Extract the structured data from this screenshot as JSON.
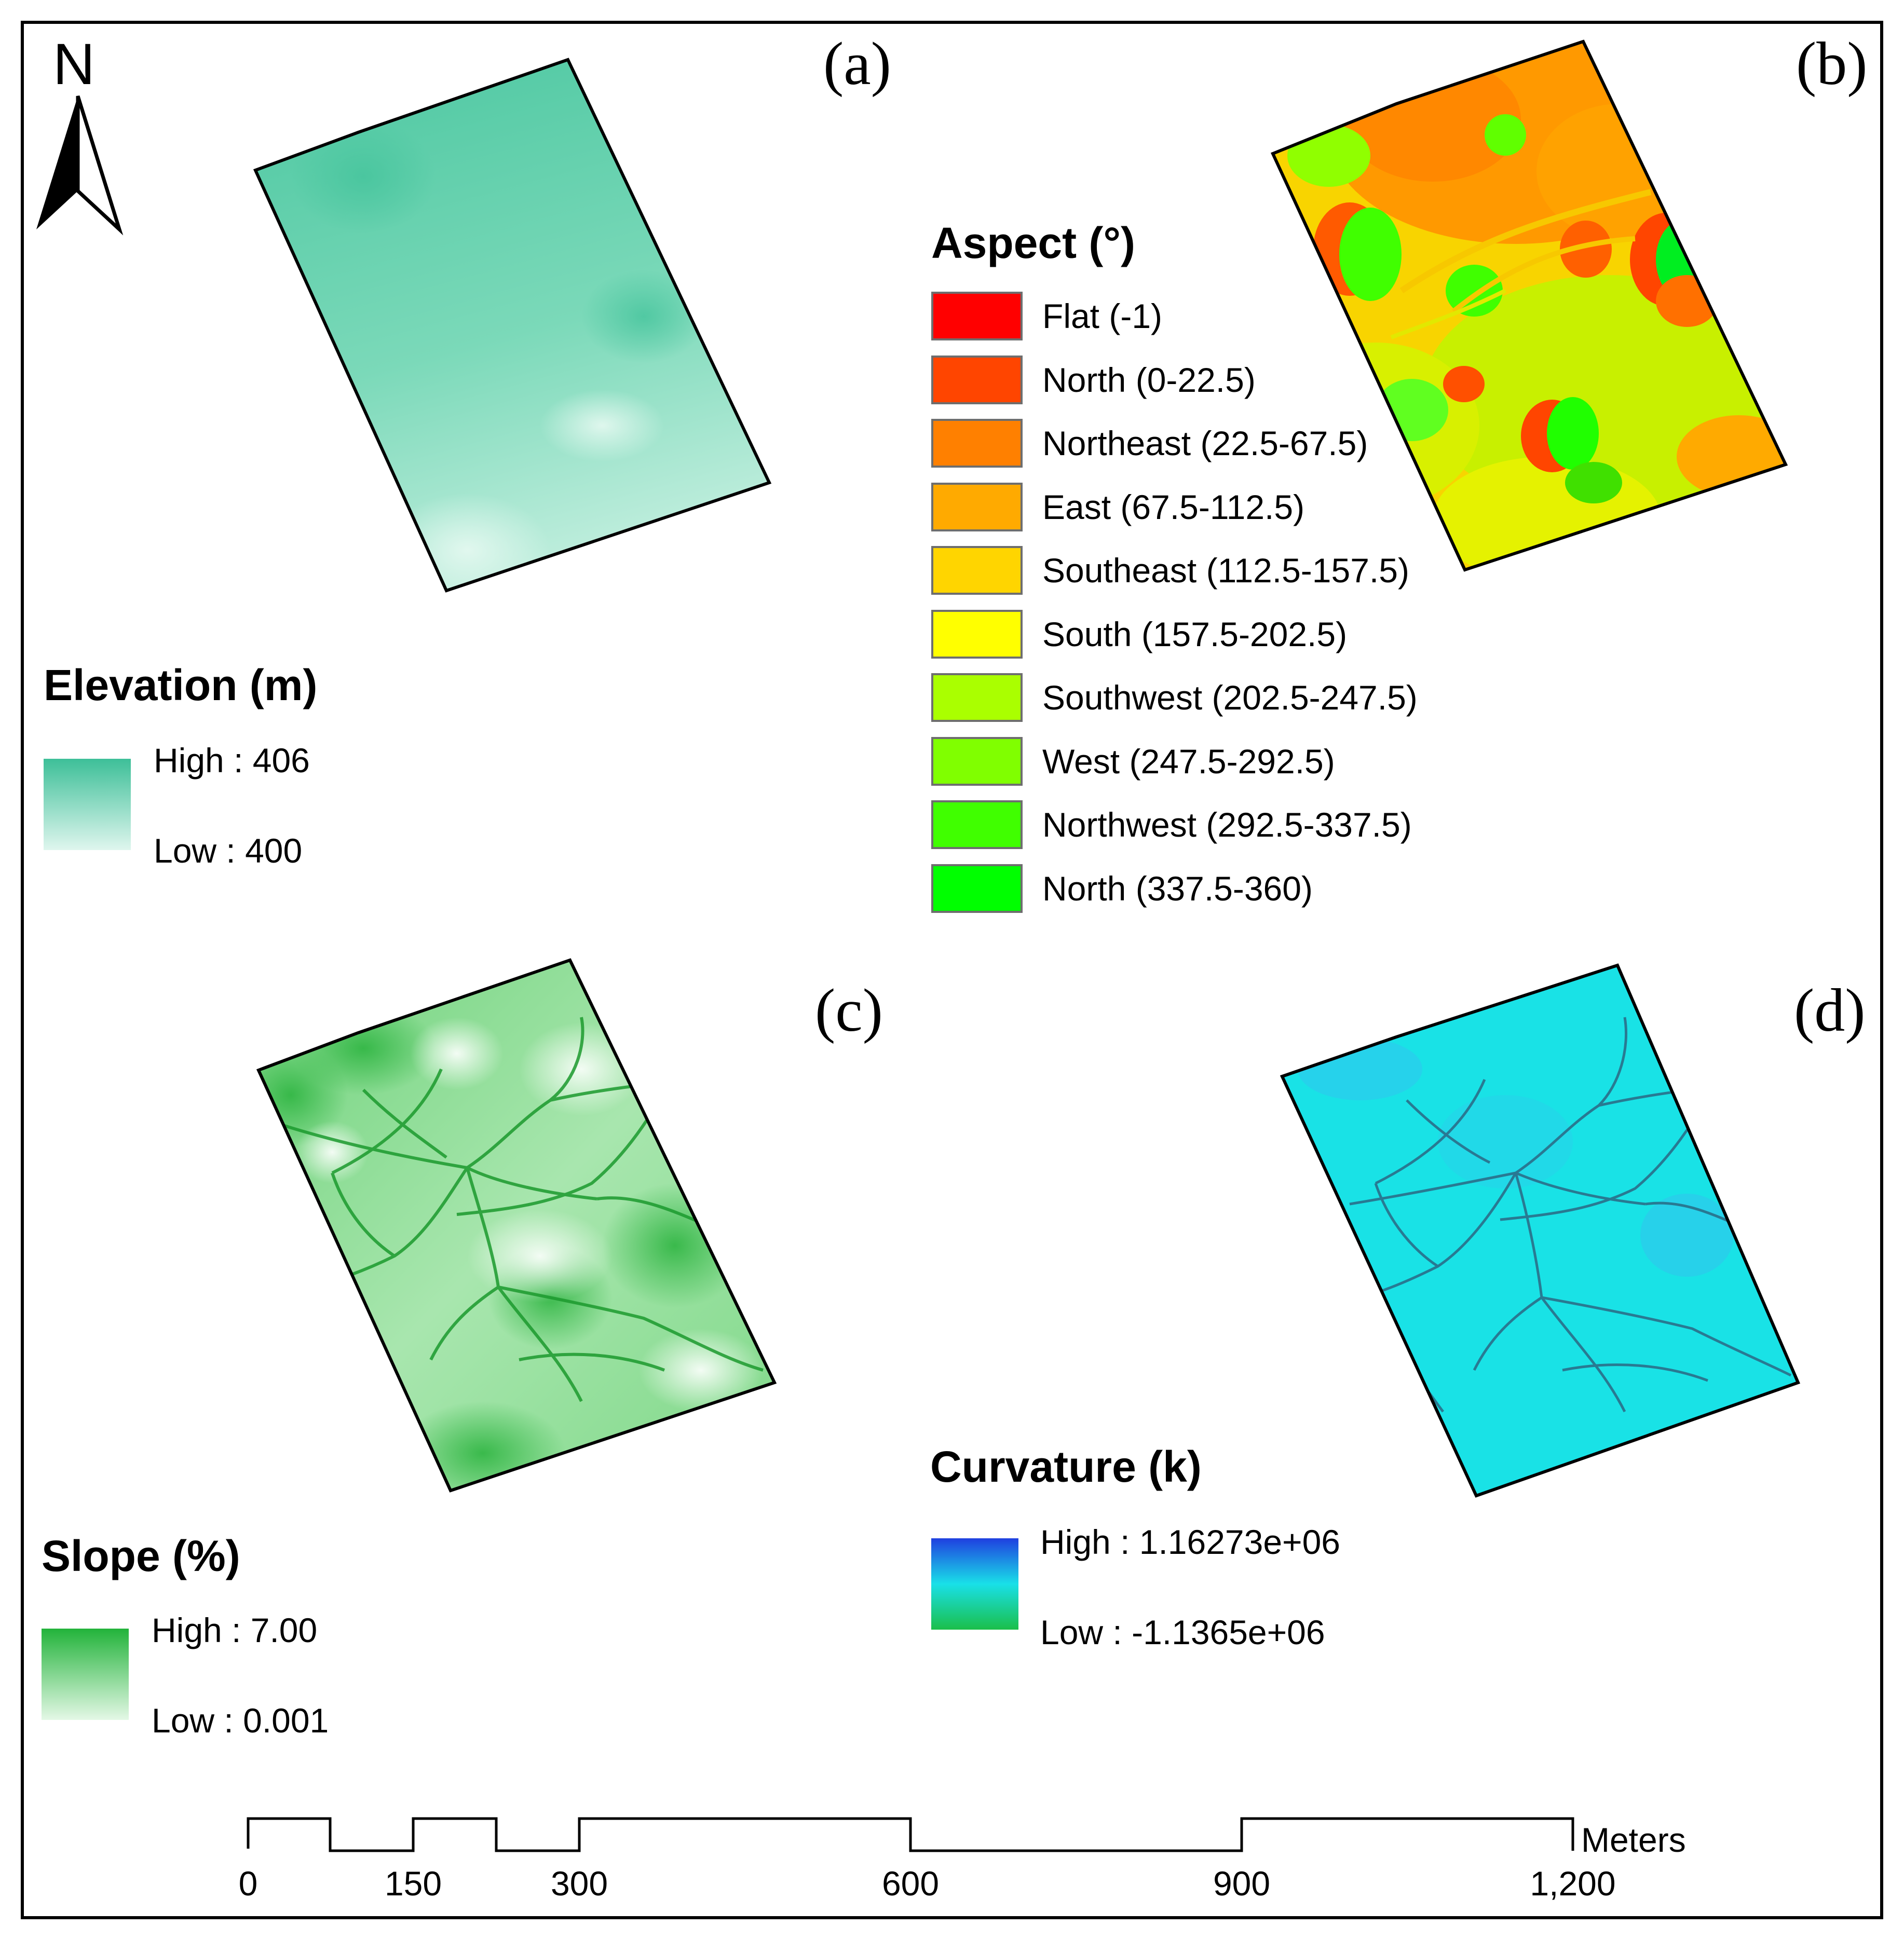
{
  "north_arrow": {
    "letter": "N"
  },
  "panels": {
    "a": {
      "label": "(a)"
    },
    "b": {
      "label": "(b)"
    },
    "c": {
      "label": "(c)"
    },
    "d": {
      "label": "(d)"
    }
  },
  "elevation_legend": {
    "title": "Elevation (m)",
    "high": "High : 406",
    "low": "Low : 400",
    "colors": {
      "high": "#3dbf98",
      "low": "#dff6ee"
    }
  },
  "aspect_legend": {
    "title": "Aspect (°)",
    "classes": [
      {
        "label": "Flat (-1)",
        "color": "#ff0000"
      },
      {
        "label": "North (0-22.5)",
        "color": "#ff4500"
      },
      {
        "label": "Northeast (22.5-67.5)",
        "color": "#ff8000"
      },
      {
        "label": "East (67.5-112.5)",
        "color": "#ffaa00"
      },
      {
        "label": "Southeast (112.5-157.5)",
        "color": "#ffd500"
      },
      {
        "label": "South (157.5-202.5)",
        "color": "#ffff00"
      },
      {
        "label": "Southwest (202.5-247.5)",
        "color": "#aaff00"
      },
      {
        "label": "West (247.5-292.5)",
        "color": "#80ff00"
      },
      {
        "label": "Northwest (292.5-337.5)",
        "color": "#40ff00"
      },
      {
        "label": "North (337.5-360)",
        "color": "#00ff00"
      }
    ]
  },
  "slope_legend": {
    "title": "Slope (%)",
    "high": "High : 7.00",
    "low": "Low : 0.001",
    "colors": {
      "high": "#22b33a",
      "low": "#e4f8e6"
    }
  },
  "curvature_legend": {
    "title": "Curvature (k)",
    "high": "High : 1.16273e+06",
    "low": "Low : -1.1365e+06",
    "colors": {
      "high": "#1f3fe0",
      "mid": "#19e0e8",
      "low": "#1bbf4a"
    }
  },
  "scale_bar": {
    "unit": "Meters",
    "ticks": [
      "0",
      "150",
      "300",
      "600",
      "900",
      "1,200"
    ]
  }
}
